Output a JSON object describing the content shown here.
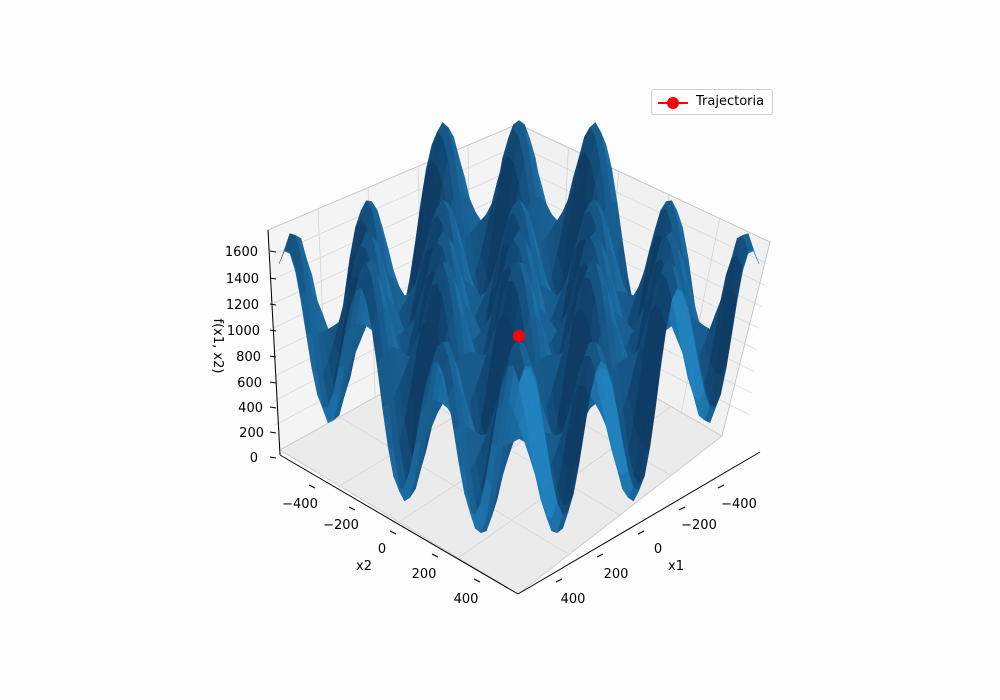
{
  "chart_data": {
    "type": "surface3d",
    "title": "",
    "xlabel": "x1",
    "ylabel": "x2",
    "zlabel": "f(x1, x2)",
    "x_ticks": [
      "−400",
      "−200",
      "0",
      "200",
      "400"
    ],
    "y_ticks": [
      "−400",
      "−200",
      "0",
      "200",
      "400"
    ],
    "z_ticks": [
      "0",
      "200",
      "400",
      "600",
      "800",
      "1000",
      "1200",
      "1400",
      "1600"
    ],
    "xlim": [
      -512,
      512
    ],
    "ylim": [
      -512,
      512
    ],
    "zlim": [
      0,
      1700
    ],
    "surface_color": "#1f77b4",
    "legend": {
      "label": "Trajectoria",
      "color": "#ff0000",
      "position": "top-right"
    },
    "trajectory": [
      {
        "x1": 0,
        "x2": 0,
        "f": 1000
      }
    ]
  }
}
